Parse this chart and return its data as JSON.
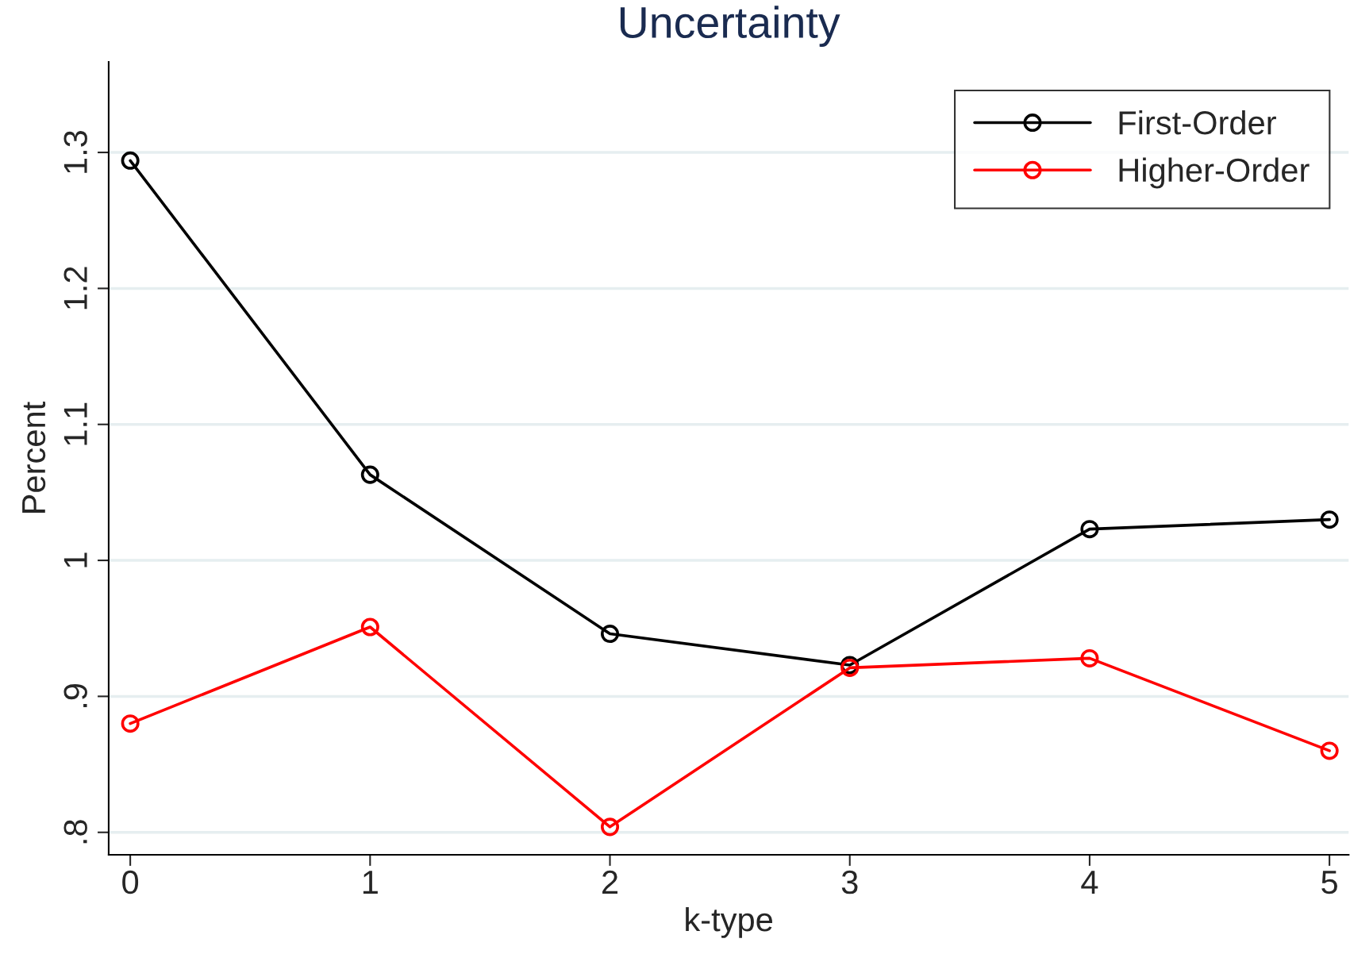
{
  "chart_data": {
    "type": "line",
    "title": "Uncertainty",
    "xlabel": "k-type",
    "ylabel": "Percent",
    "x": [
      0,
      1,
      2,
      3,
      4,
      5
    ],
    "series": [
      {
        "name": "First-Order",
        "color": "#000000",
        "values": [
          1.294,
          1.063,
          0.946,
          0.923,
          1.023,
          1.03
        ]
      },
      {
        "name": "Higher-Order",
        "color": "#ff0000",
        "values": [
          0.88,
          0.951,
          0.804,
          0.921,
          0.928,
          0.86
        ]
      }
    ],
    "xlim": [
      -0.09,
      5.08
    ],
    "xticks": [
      0,
      1,
      2,
      3,
      4,
      5
    ],
    "ylim": [
      0.7835,
      1.3665
    ],
    "yticks": [
      {
        "value": 0.8,
        "label": ".8"
      },
      {
        "value": 0.9,
        "label": ".9"
      },
      1,
      1.1,
      1.2,
      1.3
    ],
    "grid": "y",
    "legend": "top right",
    "marker": "circle",
    "line_style": "solid"
  }
}
